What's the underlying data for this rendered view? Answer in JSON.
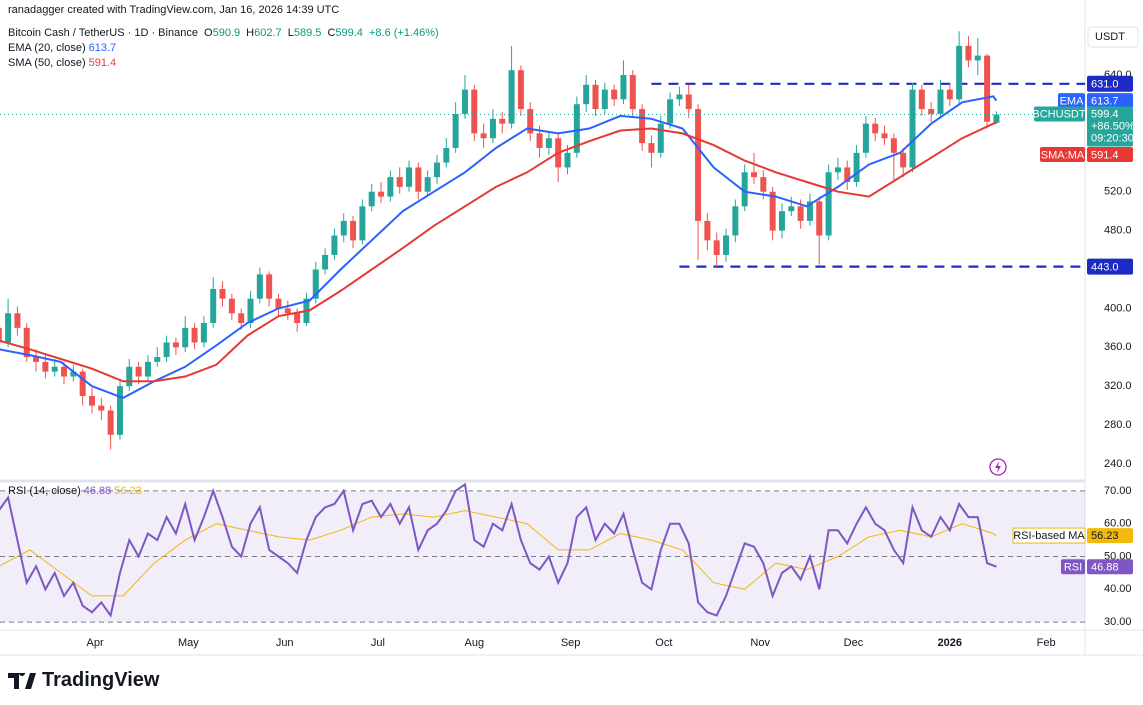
{
  "header": {
    "attribution": "ranadagger created with TradingView.com, Jan 16, 2026 14:39 UTC",
    "symbol": "Bitcoin Cash / TetherUS · 1D · Binance",
    "ohlc_labels": [
      "O",
      "H",
      "L",
      "C"
    ],
    "change": "+8.6 (+1.46%)"
  },
  "chart_data": [
    {
      "type": "candlestick",
      "currency": "USDT",
      "up_color": "#26a69a",
      "down_color": "#ef5350",
      "x": [
        0,
        3,
        6,
        9,
        12,
        15,
        18,
        21,
        24,
        27,
        30,
        33,
        36,
        39,
        42,
        45,
        48,
        51,
        54,
        57,
        60,
        63,
        66,
        69,
        72,
        75,
        78,
        81,
        84,
        87,
        90,
        93,
        96,
        99,
        102,
        105,
        108,
        111,
        114,
        117,
        120,
        123,
        126,
        129,
        132,
        135,
        138,
        141,
        144,
        147,
        150,
        153,
        156,
        159,
        162,
        165,
        168,
        171,
        174,
        177,
        180,
        183,
        186,
        189,
        192,
        195,
        198,
        201,
        204,
        207,
        210,
        213,
        216,
        219,
        222,
        225,
        228,
        231,
        234,
        237,
        240,
        243,
        246,
        249,
        252,
        255,
        258,
        261,
        264,
        267,
        270,
        273,
        276,
        279,
        282,
        285,
        288,
        291,
        294,
        297,
        300,
        303,
        306,
        309,
        312,
        315,
        318,
        321
      ],
      "open": [
        380,
        365,
        395,
        380,
        350,
        345,
        335,
        340,
        330,
        335,
        310,
        300,
        295,
        270,
        320,
        340,
        330,
        345,
        350,
        365,
        360,
        380,
        365,
        385,
        420,
        410,
        395,
        385,
        410,
        435,
        410,
        400,
        395,
        385,
        410,
        440,
        455,
        475,
        490,
        470,
        505,
        520,
        515,
        535,
        525,
        545,
        520,
        535,
        550,
        565,
        600,
        625,
        580,
        575,
        595,
        590,
        645,
        605,
        580,
        565,
        575,
        545,
        560,
        610,
        630,
        605,
        625,
        615,
        640,
        605,
        570,
        560,
        590,
        615,
        620,
        605,
        490,
        470,
        455,
        475,
        505,
        540,
        535,
        520,
        480,
        500,
        505,
        490,
        510,
        475,
        540,
        545,
        530,
        560,
        590,
        580,
        575,
        560,
        545,
        625,
        605,
        600,
        625,
        615,
        670,
        655,
        660,
        590.9
      ],
      "high": [
        400,
        410,
        402,
        385,
        358,
        352,
        348,
        345,
        342,
        338,
        318,
        308,
        300,
        325,
        348,
        345,
        352,
        360,
        372,
        370,
        392,
        385,
        392,
        432,
        428,
        415,
        400,
        418,
        442,
        438,
        415,
        408,
        400,
        416,
        448,
        462,
        482,
        498,
        495,
        512,
        528,
        530,
        542,
        545,
        552,
        550,
        542,
        558,
        575,
        612,
        640,
        630,
        590,
        605,
        602,
        670,
        650,
        612,
        588,
        582,
        580,
        568,
        618,
        640,
        635,
        632,
        630,
        655,
        645,
        610,
        578,
        598,
        622,
        628,
        630,
        610,
        498,
        478,
        482,
        512,
        548,
        560,
        542,
        525,
        508,
        515,
        512,
        518,
        515,
        548,
        555,
        552,
        568,
        598,
        596,
        588,
        580,
        565,
        632,
        630,
        612,
        635,
        632,
        685,
        680,
        678,
        662,
        602.7
      ],
      "low": [
        355,
        360,
        372,
        345,
        335,
        328,
        330,
        322,
        325,
        300,
        292,
        285,
        255,
        265,
        315,
        322,
        325,
        340,
        345,
        352,
        355,
        358,
        360,
        380,
        402,
        388,
        378,
        380,
        405,
        402,
        392,
        388,
        376,
        382,
        405,
        435,
        450,
        468,
        462,
        466,
        500,
        508,
        510,
        518,
        520,
        512,
        515,
        528,
        545,
        560,
        595,
        572,
        565,
        570,
        580,
        585,
        598,
        572,
        555,
        558,
        530,
        538,
        555,
        602,
        598,
        600,
        608,
        610,
        598,
        562,
        545,
        555,
        585,
        608,
        596,
        450,
        460,
        443,
        448,
        468,
        500,
        528,
        512,
        470,
        472,
        495,
        482,
        485,
        445,
        470,
        532,
        522,
        525,
        555,
        572,
        568,
        532,
        535,
        540,
        598,
        592,
        596,
        608,
        610,
        648,
        640,
        585,
        589.5
      ],
      "close": [
        365,
        395,
        380,
        350,
        345,
        335,
        340,
        330,
        335,
        310,
        300,
        295,
        270,
        320,
        340,
        330,
        345,
        350,
        365,
        360,
        380,
        365,
        385,
        420,
        410,
        395,
        385,
        410,
        435,
        410,
        400,
        395,
        385,
        410,
        440,
        455,
        475,
        490,
        470,
        505,
        520,
        515,
        535,
        525,
        545,
        520,
        535,
        550,
        565,
        600,
        625,
        580,
        575,
        595,
        590,
        645,
        605,
        580,
        565,
        575,
        545,
        560,
        610,
        630,
        605,
        625,
        615,
        640,
        605,
        570,
        560,
        590,
        615,
        620,
        605,
        490,
        470,
        455,
        475,
        505,
        540,
        535,
        520,
        480,
        500,
        505,
        490,
        510,
        475,
        540,
        545,
        530,
        560,
        590,
        580,
        575,
        560,
        545,
        625,
        605,
        600,
        625,
        615,
        670,
        655,
        660,
        592,
        599.4
      ],
      "series": [
        {
          "name": "EMA (20, close)",
          "short_name": "EMA",
          "color": "#2962ff",
          "x": [
            0,
            10,
            20,
            30,
            40,
            50,
            60,
            70,
            80,
            90,
            100,
            110,
            120,
            130,
            140,
            150,
            160,
            170,
            180,
            190,
            200,
            210,
            220,
            230,
            240,
            250,
            260,
            270,
            280,
            290,
            300,
            310,
            320,
            321
          ],
          "values": [
            358,
            352,
            345,
            320,
            308,
            325,
            340,
            362,
            385,
            400,
            408,
            440,
            470,
            500,
            520,
            540,
            565,
            585,
            580,
            585,
            598,
            595,
            585,
            545,
            520,
            515,
            505,
            525,
            548,
            560,
            590,
            612,
            618,
            613.7
          ]
        },
        {
          "name": "SMA (50, close)",
          "short_name": "SMA:MA",
          "color": "#e53935",
          "x": [
            0,
            10,
            20,
            30,
            40,
            50,
            60,
            70,
            80,
            90,
            100,
            110,
            120,
            130,
            140,
            150,
            160,
            170,
            180,
            190,
            200,
            210,
            220,
            230,
            240,
            250,
            260,
            270,
            280,
            290,
            300,
            310,
            320,
            321
          ],
          "values": [
            367,
            358,
            348,
            338,
            325,
            325,
            330,
            342,
            372,
            392,
            398,
            418,
            440,
            462,
            485,
            505,
            525,
            540,
            560,
            572,
            583,
            585,
            580,
            568,
            552,
            540,
            530,
            520,
            515,
            535,
            555,
            575,
            590,
            591.4
          ]
        }
      ],
      "levels": [
        {
          "value": 631,
          "label": "631.0",
          "start_x": 210,
          "color": "#1c2bc4"
        },
        {
          "value": 443,
          "label": "443.0",
          "start_x": 219,
          "color": "#1c2bc4"
        }
      ],
      "price_label": {
        "name": "BCHUSDT",
        "change": "+86.50%",
        "countdown": "09:20:30"
      },
      "xlim": [
        0.4,
        349.5
      ],
      "xticks": [
        {
          "value": 31,
          "label": "Apr"
        },
        {
          "value": 61,
          "label": "May"
        },
        {
          "value": 92,
          "label": "Jun"
        },
        {
          "value": 122,
          "label": "Jul"
        },
        {
          "value": 153,
          "label": "Aug"
        },
        {
          "value": 184,
          "label": "Sep"
        },
        {
          "value": 214,
          "label": "Oct"
        },
        {
          "value": 245,
          "label": "Nov"
        },
        {
          "value": 275,
          "label": "Dec"
        },
        {
          "value": 306,
          "label": "2026"
        },
        {
          "value": 337,
          "label": "Feb"
        }
      ],
      "ylim": [
        225.6,
        696.6
      ],
      "yticks": [
        {
          "value": 240,
          "label": "240.0"
        },
        {
          "value": 280,
          "label": "280.0"
        },
        {
          "value": 320,
          "label": "320.0"
        },
        {
          "value": 360,
          "label": "360.0"
        },
        {
          "value": 400,
          "label": "400.0"
        },
        {
          "value": 480,
          "label": "480.0"
        },
        {
          "value": 520,
          "label": "520.0"
        },
        {
          "value": 640,
          "label": "640.0"
        }
      ],
      "grid": false
    },
    {
      "type": "line",
      "title": "RSI (14, close)",
      "band": [
        30,
        70
      ],
      "band_color": "#7e57c2",
      "reference_lines": [
        70,
        50,
        30
      ],
      "series": [
        {
          "name": "RSI",
          "color": "#7e57c2",
          "x": [
            0,
            3,
            6,
            9,
            12,
            15,
            18,
            21,
            24,
            27,
            30,
            33,
            36,
            39,
            42,
            45,
            48,
            51,
            54,
            57,
            60,
            63,
            66,
            69,
            72,
            75,
            78,
            81,
            84,
            87,
            90,
            93,
            96,
            99,
            102,
            105,
            108,
            111,
            114,
            117,
            120,
            123,
            126,
            129,
            132,
            135,
            138,
            141,
            144,
            147,
            150,
            153,
            156,
            159,
            162,
            165,
            168,
            171,
            174,
            177,
            180,
            183,
            186,
            189,
            192,
            195,
            198,
            201,
            204,
            207,
            210,
            213,
            216,
            219,
            222,
            225,
            228,
            231,
            234,
            237,
            240,
            243,
            246,
            249,
            252,
            255,
            258,
            261,
            264,
            267,
            270,
            273,
            276,
            279,
            282,
            285,
            288,
            291,
            294,
            297,
            300,
            303,
            306,
            309,
            312,
            315,
            318,
            321
          ],
          "values": [
            64,
            68,
            55,
            42,
            47,
            40,
            45,
            38,
            42,
            35,
            33,
            36,
            32,
            45,
            55,
            50,
            57,
            55,
            62,
            57,
            66,
            55,
            62,
            70,
            62,
            53,
            50,
            60,
            65,
            52,
            50,
            48,
            45,
            55,
            62,
            65,
            66,
            70,
            58,
            66,
            67,
            62,
            66,
            60,
            65,
            52,
            58,
            60,
            64,
            70,
            72,
            55,
            53,
            60,
            58,
            66,
            55,
            48,
            46,
            50,
            42,
            48,
            62,
            65,
            55,
            60,
            57,
            63,
            52,
            42,
            40,
            52,
            60,
            60,
            54,
            36,
            33,
            32,
            38,
            46,
            54,
            53,
            48,
            38,
            45,
            47,
            43,
            50,
            40,
            58,
            58,
            54,
            60,
            65,
            60,
            58,
            52,
            48,
            65,
            58,
            56,
            62,
            58,
            66,
            62,
            62,
            48,
            46.88
          ]
        },
        {
          "name": "RSI-based MA",
          "color": "#f0b90b",
          "x": [
            0,
            10,
            20,
            30,
            40,
            50,
            60,
            70,
            80,
            90,
            100,
            110,
            120,
            130,
            140,
            150,
            160,
            170,
            180,
            190,
            200,
            210,
            220,
            230,
            240,
            250,
            260,
            270,
            280,
            290,
            300,
            310,
            320,
            321
          ],
          "values": [
            47,
            52,
            45,
            38,
            38,
            48,
            55,
            60,
            58,
            56,
            55,
            58,
            62,
            63,
            62,
            64,
            62,
            60,
            52,
            52,
            57,
            55,
            52,
            42,
            40,
            48,
            46,
            50,
            56,
            58,
            56,
            60,
            57,
            56.23
          ]
        }
      ],
      "xlim": [
        0.4,
        349.5
      ],
      "ylim": [
        28.2,
        71.8
      ],
      "yticks": [
        {
          "value": 70,
          "label": "70.00"
        },
        {
          "value": 60,
          "label": "60.00"
        },
        {
          "value": 50,
          "label": "50.00"
        },
        {
          "value": 40,
          "label": "40.00"
        },
        {
          "value": 30,
          "label": "30.00"
        }
      ]
    }
  ],
  "footer": {
    "brand": "TradingView"
  }
}
